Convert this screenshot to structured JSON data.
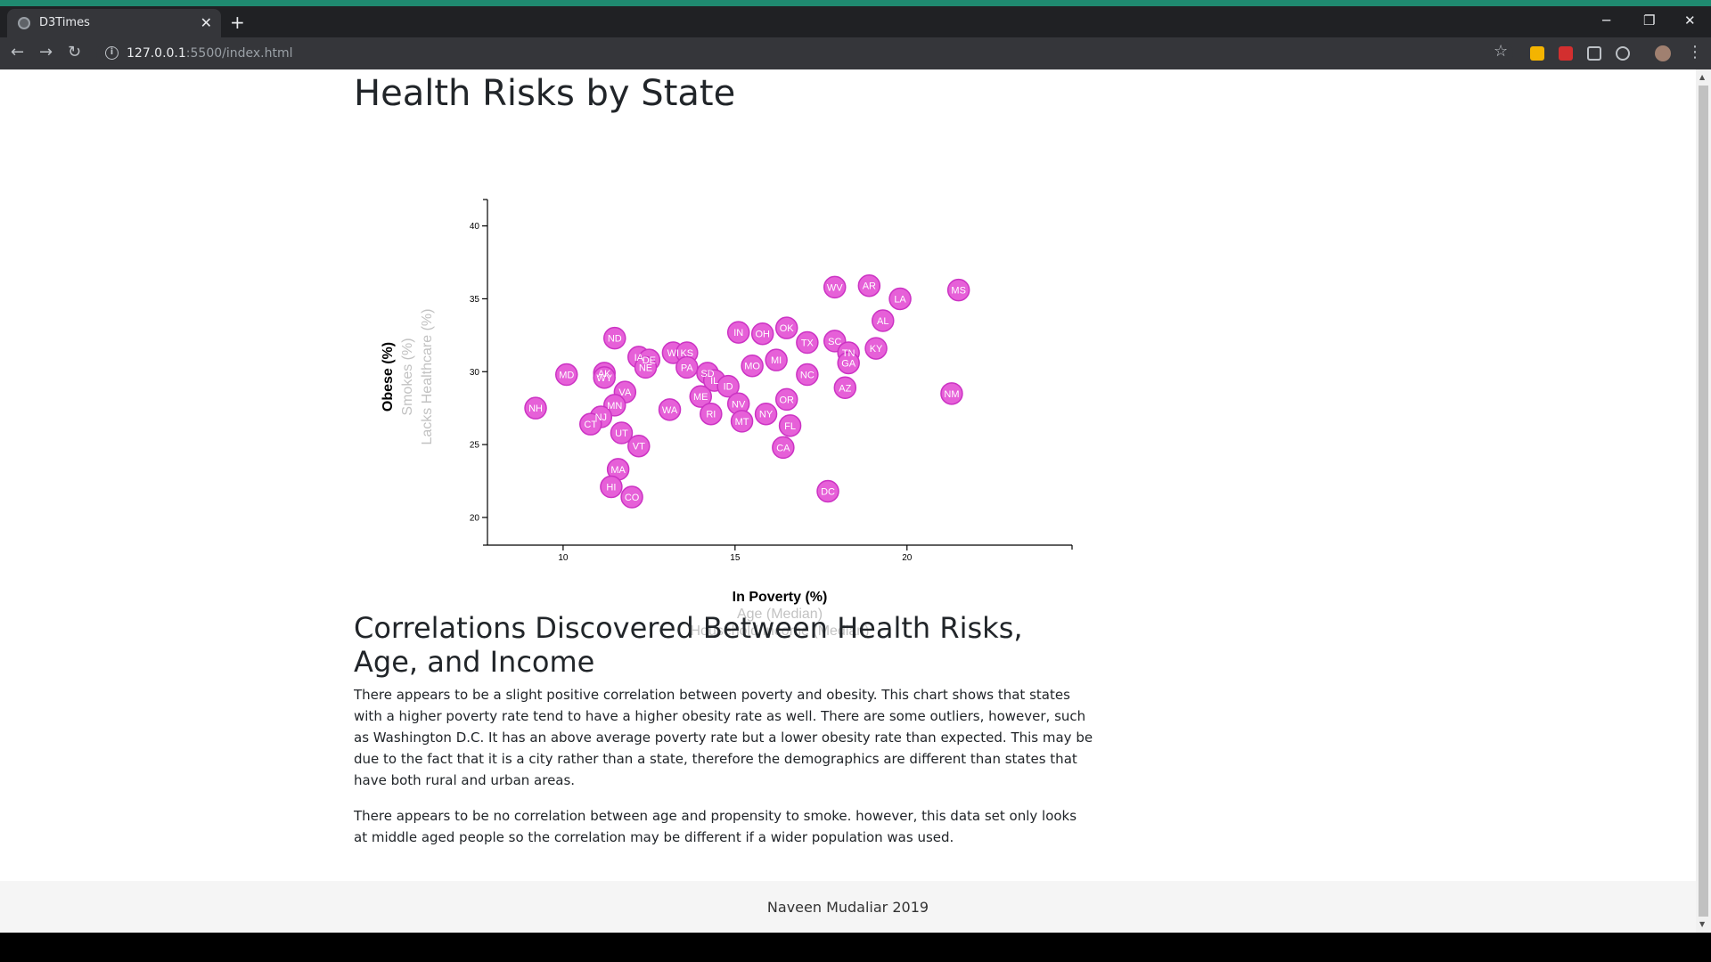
{
  "browser": {
    "tab_title": "D3Times",
    "url_host": "127.0.0.1",
    "url_path": ":5500/index.html"
  },
  "page": {
    "title": "Health Risks by State",
    "section_title": "Correlations Discovered Between Health Risks, Age, and Income",
    "paragraphs": [
      "There appears to be a slight positive correlation between poverty and obesity. This chart shows that states with a higher poverty rate tend to have a higher obesity rate as well. There are some outliers, however, such as Washington D.C. It has an above average poverty rate but a lower obesity rate than expected. This may be due to the fact that it is a city rather than a state, therefore the demographics are different than states that have both rural and urban areas.",
      "There appears to be no correlation between age and propensity to smoke. however, this data set only looks at middle aged people so the correlation may be different if a wider population was used."
    ],
    "footer": "Naveen Mudaliar 2019"
  },
  "chart_data": {
    "type": "scatter",
    "x_axis_titles": [
      {
        "label": "In Poverty (%)",
        "active": true
      },
      {
        "label": "Age (Median)",
        "active": false
      },
      {
        "label": "Household Income (Median)",
        "active": false
      }
    ],
    "y_axis_titles": [
      {
        "label": "Obese (%)",
        "active": true
      },
      {
        "label": "Smokes (%)",
        "active": false
      },
      {
        "label": "Lacks Healthcare (%)",
        "active": false
      }
    ],
    "xlim": [
      7.8,
      24.8
    ],
    "ylim": [
      18.1,
      41.2
    ],
    "x_ticks": [
      10,
      15,
      20
    ],
    "y_ticks": [
      20,
      25,
      30,
      35,
      40
    ],
    "marker_color": "#e660d8",
    "points": [
      {
        "abbr": "WV",
        "x": 17.9,
        "y": 35.8
      },
      {
        "abbr": "AR",
        "x": 18.9,
        "y": 35.9
      },
      {
        "abbr": "MS",
        "x": 21.5,
        "y": 35.6
      },
      {
        "abbr": "LA",
        "x": 19.8,
        "y": 35.0
      },
      {
        "abbr": "AL",
        "x": 19.3,
        "y": 33.5
      },
      {
        "abbr": "OK",
        "x": 16.5,
        "y": 33.0
      },
      {
        "abbr": "IN",
        "x": 15.1,
        "y": 32.7
      },
      {
        "abbr": "OH",
        "x": 15.8,
        "y": 32.6
      },
      {
        "abbr": "ND",
        "x": 11.5,
        "y": 32.3
      },
      {
        "abbr": "TX",
        "x": 17.1,
        "y": 32.0
      },
      {
        "abbr": "SC",
        "x": 17.9,
        "y": 32.1
      },
      {
        "abbr": "KY",
        "x": 19.1,
        "y": 31.6
      },
      {
        "abbr": "TN",
        "x": 18.3,
        "y": 31.3
      },
      {
        "abbr": "WI",
        "x": 13.2,
        "y": 31.3
      },
      {
        "abbr": "KS",
        "x": 13.6,
        "y": 31.3
      },
      {
        "abbr": "IA",
        "x": 12.2,
        "y": 31.0
      },
      {
        "abbr": "DE",
        "x": 12.5,
        "y": 30.8
      },
      {
        "abbr": "GA",
        "x": 18.3,
        "y": 30.6
      },
      {
        "abbr": "MI",
        "x": 16.2,
        "y": 30.8
      },
      {
        "abbr": "NE",
        "x": 12.4,
        "y": 30.3
      },
      {
        "abbr": "PA",
        "x": 13.6,
        "y": 30.3
      },
      {
        "abbr": "MO",
        "x": 15.5,
        "y": 30.4
      },
      {
        "abbr": "SD",
        "x": 14.2,
        "y": 29.9
      },
      {
        "abbr": "IL",
        "x": 14.4,
        "y": 29.4
      },
      {
        "abbr": "NC",
        "x": 17.1,
        "y": 29.8
      },
      {
        "abbr": "MD",
        "x": 10.1,
        "y": 29.8
      },
      {
        "abbr": "AK",
        "x": 11.2,
        "y": 29.9
      },
      {
        "abbr": "WY",
        "x": 11.2,
        "y": 29.6
      },
      {
        "abbr": "ID",
        "x": 14.8,
        "y": 29.0
      },
      {
        "abbr": "AZ",
        "x": 18.2,
        "y": 28.9
      },
      {
        "abbr": "VA",
        "x": 11.8,
        "y": 28.6
      },
      {
        "abbr": "NM",
        "x": 21.3,
        "y": 28.5
      },
      {
        "abbr": "ME",
        "x": 14.0,
        "y": 28.3
      },
      {
        "abbr": "OR",
        "x": 16.5,
        "y": 28.1
      },
      {
        "abbr": "MN",
        "x": 11.5,
        "y": 27.7
      },
      {
        "abbr": "NV",
        "x": 15.1,
        "y": 27.8
      },
      {
        "abbr": "NH",
        "x": 9.2,
        "y": 27.5
      },
      {
        "abbr": "WA",
        "x": 13.1,
        "y": 27.4
      },
      {
        "abbr": "RI",
        "x": 14.3,
        "y": 27.1
      },
      {
        "abbr": "NY",
        "x": 15.9,
        "y": 27.1
      },
      {
        "abbr": "NJ",
        "x": 11.1,
        "y": 26.9
      },
      {
        "abbr": "MT",
        "x": 15.2,
        "y": 26.6
      },
      {
        "abbr": "CT",
        "x": 10.8,
        "y": 26.4
      },
      {
        "abbr": "FL",
        "x": 16.6,
        "y": 26.3
      },
      {
        "abbr": "UT",
        "x": 11.7,
        "y": 25.8
      },
      {
        "abbr": "VT",
        "x": 12.2,
        "y": 24.9
      },
      {
        "abbr": "CA",
        "x": 16.4,
        "y": 24.8
      },
      {
        "abbr": "MA",
        "x": 11.6,
        "y": 23.3
      },
      {
        "abbr": "HI",
        "x": 11.4,
        "y": 22.1
      },
      {
        "abbr": "DC",
        "x": 17.7,
        "y": 21.8
      },
      {
        "abbr": "CO",
        "x": 12.0,
        "y": 21.4
      }
    ]
  }
}
